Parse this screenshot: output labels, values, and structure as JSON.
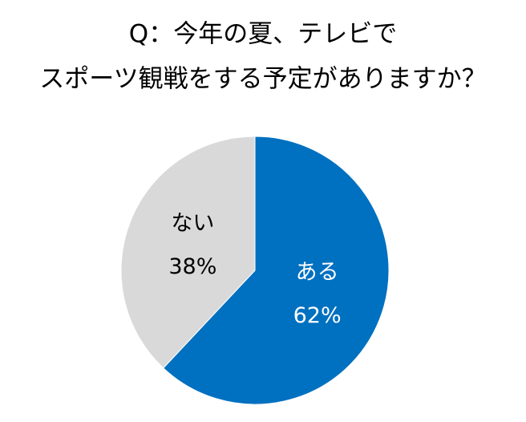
{
  "chart_data": {
    "type": "pie",
    "title": [
      "Q：今年の夏、テレビで",
      "スポーツ観戦をする予定がありますか？"
    ],
    "categories": [
      "ある",
      "ない"
    ],
    "values": [
      62,
      38
    ],
    "value_labels": [
      "62%",
      "38%"
    ],
    "colors": [
      "#0070c0",
      "#d9d9d9"
    ],
    "label_colors": [
      "#ffffff",
      "#000000"
    ],
    "start": "top",
    "direction": "clockwise"
  }
}
